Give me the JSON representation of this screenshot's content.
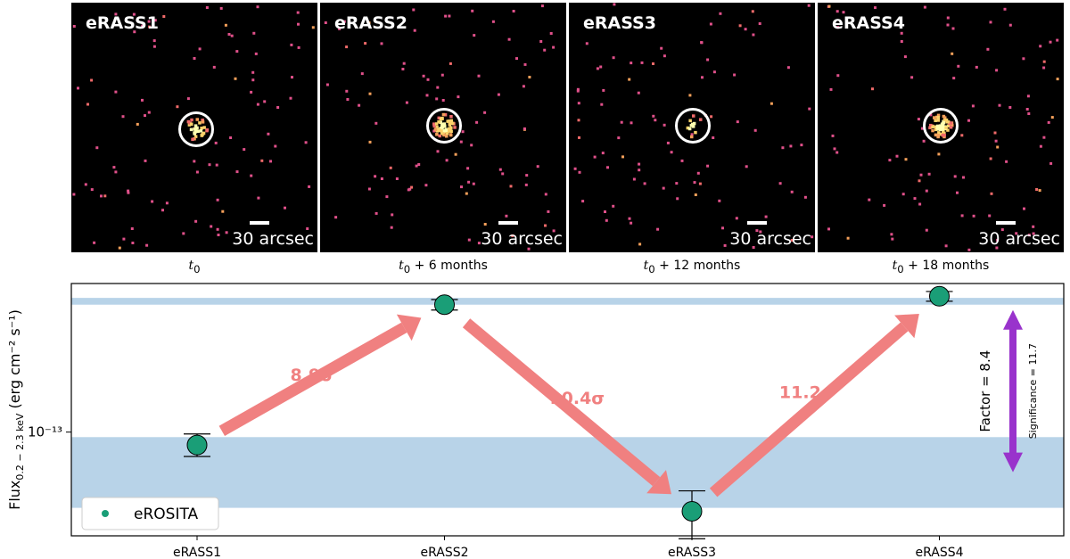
{
  "image_panels": [
    {
      "epoch": "eRASS1",
      "scale": "30 arcsec",
      "time_base": "t",
      "time_sub": "0",
      "time_suffix": "",
      "seed": 11,
      "brightness": 0.45
    },
    {
      "epoch": "eRASS2",
      "scale": "30 arcsec",
      "time_base": "t",
      "time_sub": "0",
      "time_suffix": " + 6 months",
      "seed": 23,
      "brightness": 1.0
    },
    {
      "epoch": "eRASS3",
      "scale": "30 arcsec",
      "time_base": "t",
      "time_sub": "0",
      "time_suffix": " + 12 months",
      "seed": 37,
      "brightness": 0.15
    },
    {
      "epoch": "eRASS4",
      "scale": "30 arcsec",
      "time_base": "t",
      "time_sub": "0",
      "time_suffix": " + 18 months",
      "seed": 51,
      "brightness": 1.0
    }
  ],
  "chart_data": {
    "type": "scatter",
    "categories": [
      "eRASS1",
      "eRASS2",
      "eRASS3",
      "eRASS4"
    ],
    "series": [
      {
        "name": "eROSITA",
        "color": "#1a9e77",
        "values": [
          9e-14,
          2.82e-13,
          5.25e-14,
          3.02e-13
        ],
        "err_low": [
          8e-15,
          1.2e-14,
          1.05e-14,
          1.2e-14
        ],
        "err_high": [
          8.5e-15,
          1.2e-14,
          9.5e-15,
          1.2e-14
        ]
      }
    ],
    "ylabel": "Flux",
    "ylabel_sub": "0.2 − 2.3 keV",
    "ylabel_units": "(erg cm⁻² s⁻¹)",
    "ytick_label": "10⁻¹³",
    "ytick_value": 1e-13,
    "yscale": "log",
    "ylim": [
      4.3e-14,
      3.35e-13
    ],
    "bands": [
      {
        "low": 2.82e-13,
        "high": 2.98e-13,
        "color": "#b8d3e8"
      },
      {
        "low": 5.4e-14,
        "high": 9.6e-14,
        "color": "#b8d3e8"
      }
    ],
    "arrows": [
      {
        "from": 0,
        "to": 1,
        "label": "8.9σ"
      },
      {
        "from": 1,
        "to": 2,
        "label": "10.4σ"
      },
      {
        "from": 2,
        "to": 3,
        "label": "11.2σ"
      }
    ],
    "arrow_color": "#f08080",
    "factor_label": "Factor = 8.4",
    "significance_label": "Significance = 11.7",
    "factor_color": "#9933cc",
    "legend": "eROSITA",
    "legend_position": "bottom-left"
  }
}
